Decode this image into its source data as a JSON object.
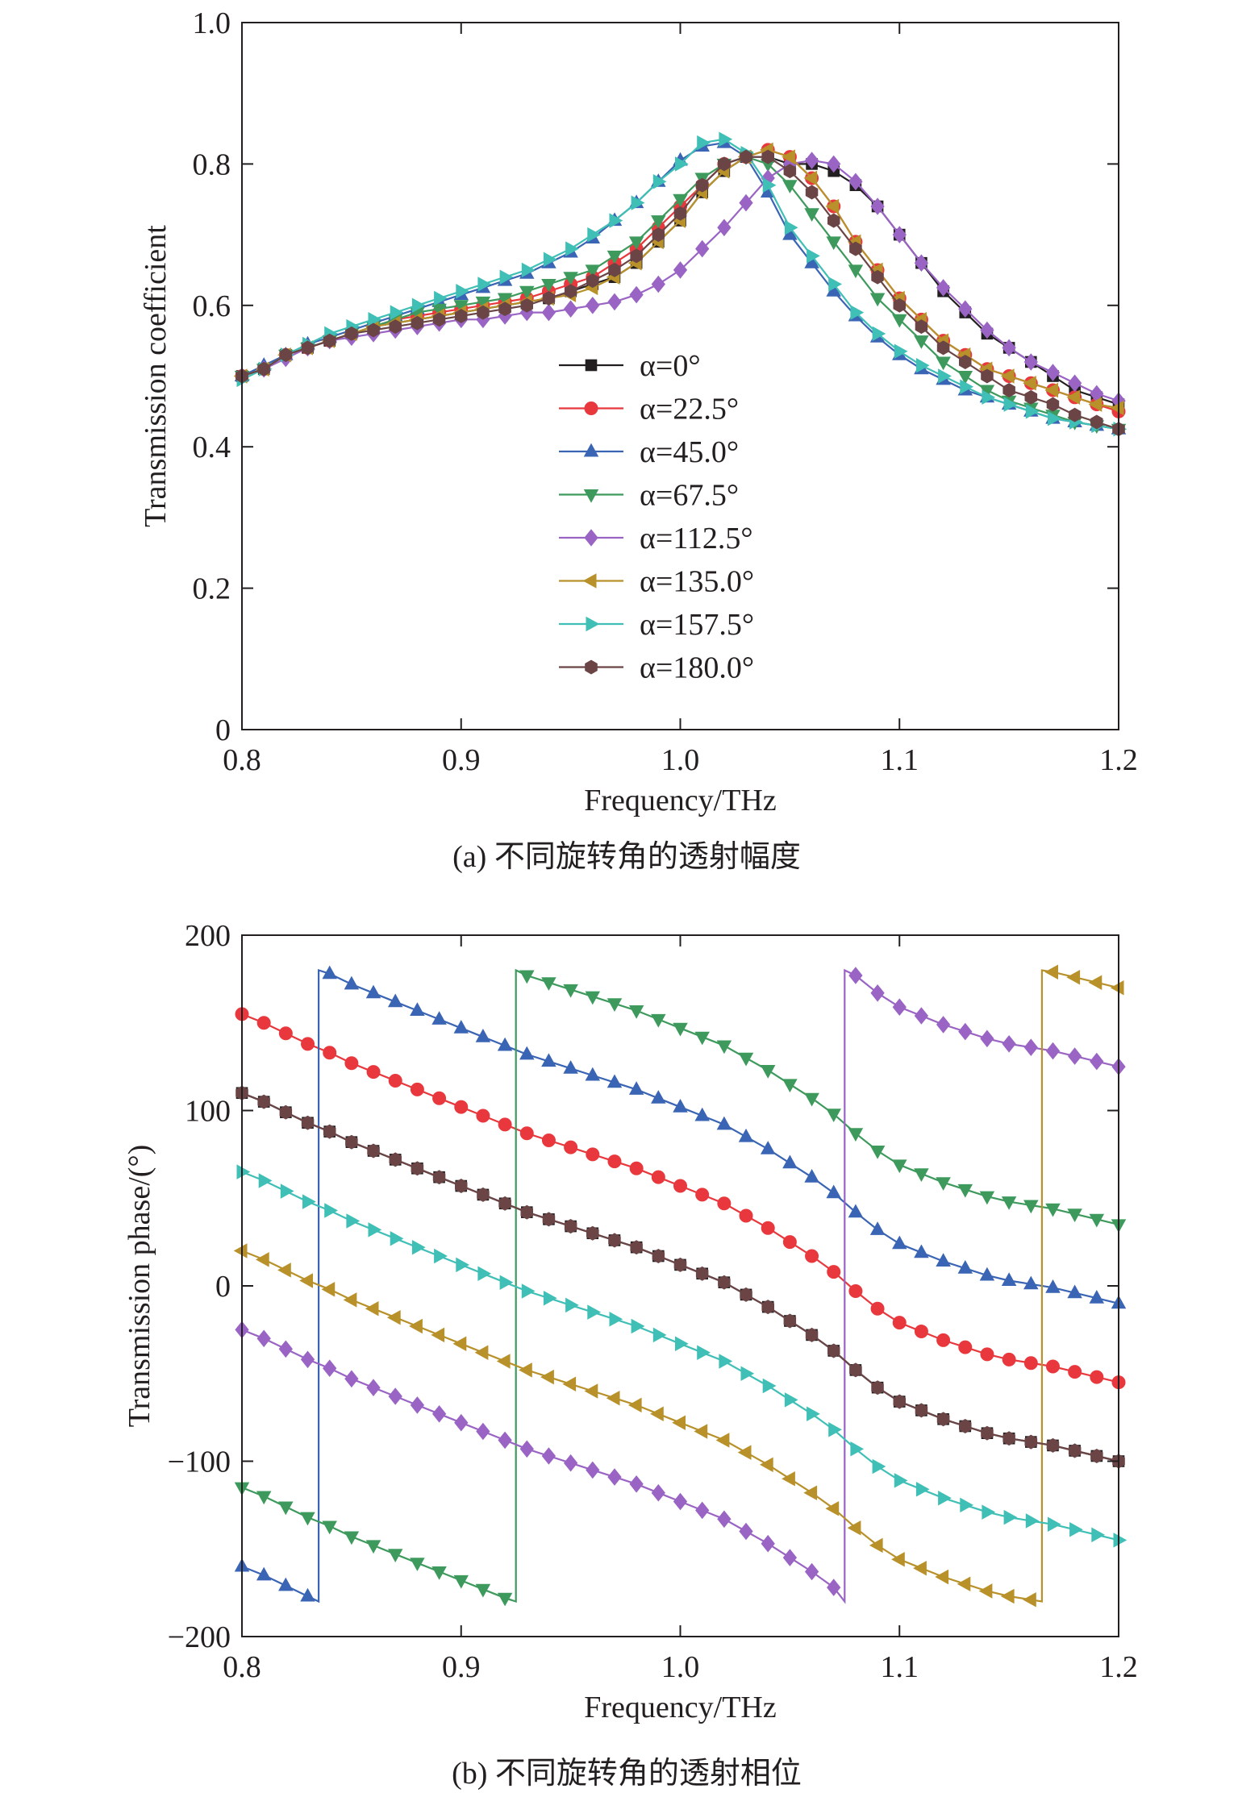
{
  "figure": {
    "caption_a": "(a) 不同旋转角的透射幅度",
    "caption_b": "(b) 不同旋转角的透射相位"
  },
  "legend": {
    "entries": [
      "α=0°",
      "α=22.5°",
      "α=45.0°",
      "α=67.5°",
      "α=112.5°",
      "α=135.0°",
      "α=157.5°",
      "α=180.0°"
    ],
    "placement": "center (inside upper panel)"
  },
  "chart_data": [
    {
      "type": "line",
      "panel": "a",
      "xlabel": "Frequency/THz",
      "ylabel": "Transmission coefficient",
      "xlim": [
        0.8,
        1.2
      ],
      "ylim": [
        0,
        1.0
      ],
      "xticks": [
        "0.8",
        "0.9",
        "1.0",
        "1.1",
        "1.2"
      ],
      "yticks": [
        "0",
        "0.2",
        "0.4",
        "0.6",
        "0.8",
        "1.0"
      ],
      "grid": false,
      "x": [
        0.8,
        0.81,
        0.82,
        0.83,
        0.84,
        0.85,
        0.86,
        0.87,
        0.88,
        0.89,
        0.9,
        0.91,
        0.92,
        0.93,
        0.94,
        0.95,
        0.96,
        0.97,
        0.98,
        0.99,
        1.0,
        1.01,
        1.02,
        1.03,
        1.04,
        1.05,
        1.06,
        1.07,
        1.08,
        1.09,
        1.1,
        1.11,
        1.12,
        1.13,
        1.14,
        1.15,
        1.16,
        1.17,
        1.18,
        1.19,
        1.2
      ],
      "series": [
        {
          "name": "α=0°",
          "color": "#231f20",
          "marker": "square",
          "values": [
            0.5,
            0.51,
            0.53,
            0.54,
            0.55,
            0.56,
            0.57,
            0.575,
            0.58,
            0.585,
            0.59,
            0.595,
            0.6,
            0.605,
            0.61,
            0.62,
            0.63,
            0.64,
            0.66,
            0.69,
            0.72,
            0.76,
            0.79,
            0.81,
            0.81,
            0.8,
            0.8,
            0.79,
            0.77,
            0.74,
            0.7,
            0.66,
            0.62,
            0.59,
            0.56,
            0.54,
            0.52,
            0.5,
            0.48,
            0.47,
            0.46
          ]
        },
        {
          "name": "α=22.5°",
          "color": "#e8383d",
          "marker": "circle",
          "values": [
            0.5,
            0.51,
            0.53,
            0.54,
            0.55,
            0.56,
            0.57,
            0.58,
            0.585,
            0.59,
            0.595,
            0.6,
            0.605,
            0.61,
            0.62,
            0.63,
            0.64,
            0.66,
            0.68,
            0.71,
            0.74,
            0.77,
            0.8,
            0.81,
            0.82,
            0.81,
            0.78,
            0.74,
            0.69,
            0.65,
            0.61,
            0.58,
            0.55,
            0.53,
            0.51,
            0.5,
            0.49,
            0.48,
            0.47,
            0.46,
            0.45
          ]
        },
        {
          "name": "α=45.0°",
          "color": "#3a64b4",
          "marker": "triangle-up",
          "values": [
            0.5,
            0.515,
            0.53,
            0.545,
            0.555,
            0.565,
            0.575,
            0.585,
            0.595,
            0.605,
            0.615,
            0.625,
            0.635,
            0.645,
            0.66,
            0.675,
            0.695,
            0.72,
            0.745,
            0.775,
            0.805,
            0.825,
            0.83,
            0.81,
            0.76,
            0.7,
            0.66,
            0.62,
            0.585,
            0.555,
            0.53,
            0.51,
            0.495,
            0.48,
            0.47,
            0.46,
            0.45,
            0.44,
            0.435,
            0.43,
            0.425
          ]
        },
        {
          "name": "α=67.5°",
          "color": "#3d9a5c",
          "marker": "triangle-down",
          "values": [
            0.5,
            0.51,
            0.53,
            0.54,
            0.55,
            0.56,
            0.57,
            0.58,
            0.59,
            0.595,
            0.6,
            0.605,
            0.61,
            0.62,
            0.63,
            0.64,
            0.65,
            0.67,
            0.69,
            0.72,
            0.75,
            0.78,
            0.8,
            0.81,
            0.8,
            0.77,
            0.73,
            0.69,
            0.65,
            0.61,
            0.58,
            0.55,
            0.52,
            0.5,
            0.48,
            0.465,
            0.455,
            0.445,
            0.435,
            0.43,
            0.425
          ]
        },
        {
          "name": "α=112.5°",
          "color": "#9a64c4",
          "marker": "diamond",
          "values": [
            0.5,
            0.51,
            0.525,
            0.54,
            0.55,
            0.555,
            0.56,
            0.565,
            0.57,
            0.575,
            0.58,
            0.58,
            0.585,
            0.59,
            0.59,
            0.595,
            0.6,
            0.605,
            0.615,
            0.63,
            0.65,
            0.68,
            0.71,
            0.745,
            0.78,
            0.8,
            0.805,
            0.8,
            0.775,
            0.74,
            0.7,
            0.66,
            0.625,
            0.595,
            0.565,
            0.54,
            0.52,
            0.505,
            0.49,
            0.475,
            0.465
          ]
        },
        {
          "name": "α=135.0°",
          "color": "#b8912a",
          "marker": "triangle-left",
          "values": [
            0.5,
            0.51,
            0.53,
            0.54,
            0.55,
            0.56,
            0.57,
            0.575,
            0.58,
            0.585,
            0.59,
            0.595,
            0.6,
            0.605,
            0.61,
            0.615,
            0.625,
            0.64,
            0.66,
            0.69,
            0.72,
            0.76,
            0.79,
            0.81,
            0.82,
            0.81,
            0.78,
            0.74,
            0.69,
            0.65,
            0.61,
            0.58,
            0.55,
            0.53,
            0.51,
            0.5,
            0.49,
            0.48,
            0.47,
            0.46,
            0.455
          ]
        },
        {
          "name": "α=157.5°",
          "color": "#3fbfb6",
          "marker": "triangle-right",
          "values": [
            0.495,
            0.51,
            0.53,
            0.545,
            0.56,
            0.57,
            0.58,
            0.59,
            0.6,
            0.61,
            0.62,
            0.63,
            0.64,
            0.65,
            0.665,
            0.68,
            0.7,
            0.72,
            0.745,
            0.775,
            0.8,
            0.83,
            0.835,
            0.815,
            0.77,
            0.71,
            0.67,
            0.63,
            0.59,
            0.56,
            0.535,
            0.515,
            0.5,
            0.485,
            0.47,
            0.46,
            0.45,
            0.44,
            0.435,
            0.43,
            0.425
          ]
        },
        {
          "name": "α=180.0°",
          "color": "#6b4546",
          "marker": "hexagon",
          "values": [
            0.5,
            0.51,
            0.53,
            0.54,
            0.55,
            0.56,
            0.565,
            0.57,
            0.575,
            0.58,
            0.585,
            0.59,
            0.595,
            0.6,
            0.61,
            0.62,
            0.635,
            0.65,
            0.67,
            0.7,
            0.73,
            0.77,
            0.8,
            0.81,
            0.81,
            0.79,
            0.76,
            0.72,
            0.68,
            0.64,
            0.6,
            0.57,
            0.54,
            0.52,
            0.5,
            0.48,
            0.47,
            0.46,
            0.445,
            0.435,
            0.425
          ]
        }
      ]
    },
    {
      "type": "line",
      "panel": "b",
      "xlabel": "Frequency/THz",
      "ylabel": "Transmission phase/(°)",
      "xlim": [
        0.8,
        1.2
      ],
      "ylim": [
        -200,
        200
      ],
      "xticks": [
        "0.8",
        "0.9",
        "1.0",
        "1.1",
        "1.2"
      ],
      "yticks": [
        "−200",
        "−100",
        "0",
        "100",
        "200"
      ],
      "grid": false,
      "x": [
        0.8,
        0.81,
        0.82,
        0.83,
        0.84,
        0.85,
        0.86,
        0.87,
        0.88,
        0.89,
        0.9,
        0.91,
        0.92,
        0.93,
        0.94,
        0.95,
        0.96,
        0.97,
        0.98,
        0.99,
        1.0,
        1.01,
        1.02,
        1.03,
        1.04,
        1.05,
        1.06,
        1.07,
        1.08,
        1.09,
        1.1,
        1.11,
        1.12,
        1.13,
        1.14,
        1.15,
        1.16,
        1.17,
        1.18,
        1.19,
        1.2
      ],
      "phase_offsets_deg": [
        0,
        45,
        90,
        135,
        225,
        270,
        315,
        360
      ],
      "series": [
        {
          "name": "α=0°",
          "color": "#231f20",
          "marker": "square",
          "values": [
            110,
            105,
            99,
            93,
            88,
            82,
            77,
            72,
            67,
            62,
            57,
            52,
            47,
            42,
            38,
            34,
            30,
            26,
            22,
            17,
            12,
            7,
            2,
            -5,
            -12,
            -20,
            -28,
            -37,
            -48,
            -58,
            -66,
            -71,
            -76,
            -80,
            -84,
            -87,
            -89,
            -91,
            -94,
            -97,
            -100
          ]
        }
      ]
    }
  ]
}
